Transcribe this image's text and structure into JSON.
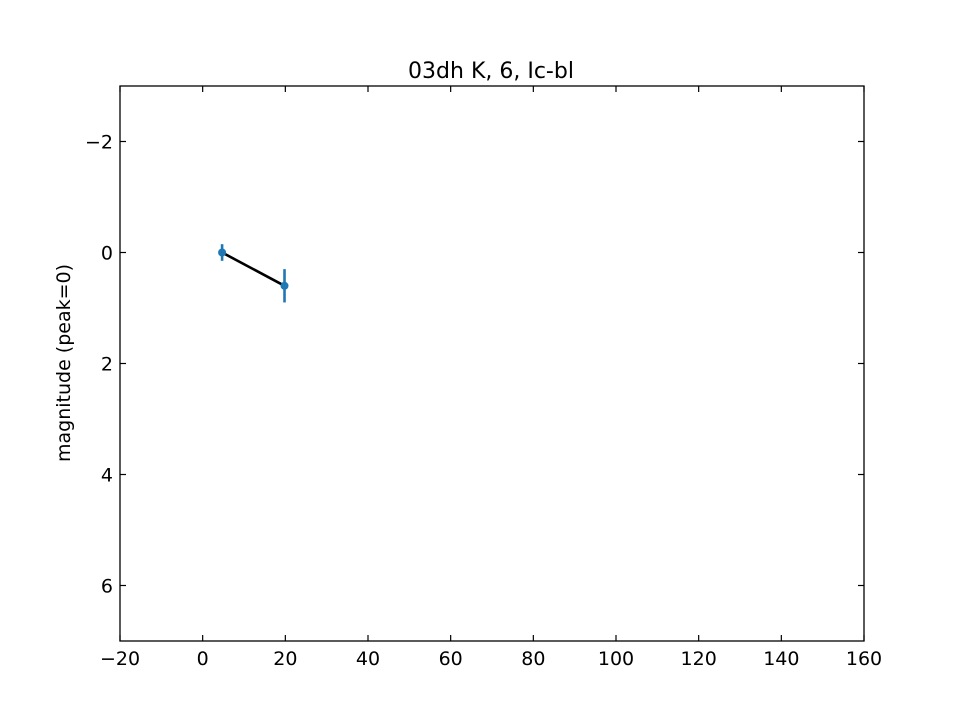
{
  "chart_data": {
    "type": "line",
    "title": "03dh K, 6, Ic-bl",
    "xlabel": "",
    "ylabel": "magnitude (peak=0)",
    "xlim": [
      -20,
      160
    ],
    "ylim": [
      7,
      -3
    ],
    "y_inverted": true,
    "x_ticks": [
      -20,
      0,
      20,
      40,
      60,
      80,
      100,
      120,
      140,
      160
    ],
    "y_ticks": [
      -2,
      0,
      2,
      4,
      6
    ],
    "x_tick_labels": [
      "−20",
      "0",
      "20",
      "40",
      "60",
      "80",
      "100",
      "120",
      "140",
      "160"
    ],
    "y_tick_labels": [
      "−2",
      "0",
      "2",
      "4",
      "6"
    ],
    "tick_direction": "in",
    "grid": false,
    "legend": "none",
    "series": [
      {
        "x": [
          4.7,
          19.8
        ],
        "y": [
          0.0,
          0.6
        ],
        "yerr": [
          0.15,
          0.3
        ],
        "marker_color": "#1f77b4",
        "line_color": "#000000"
      }
    ]
  }
}
